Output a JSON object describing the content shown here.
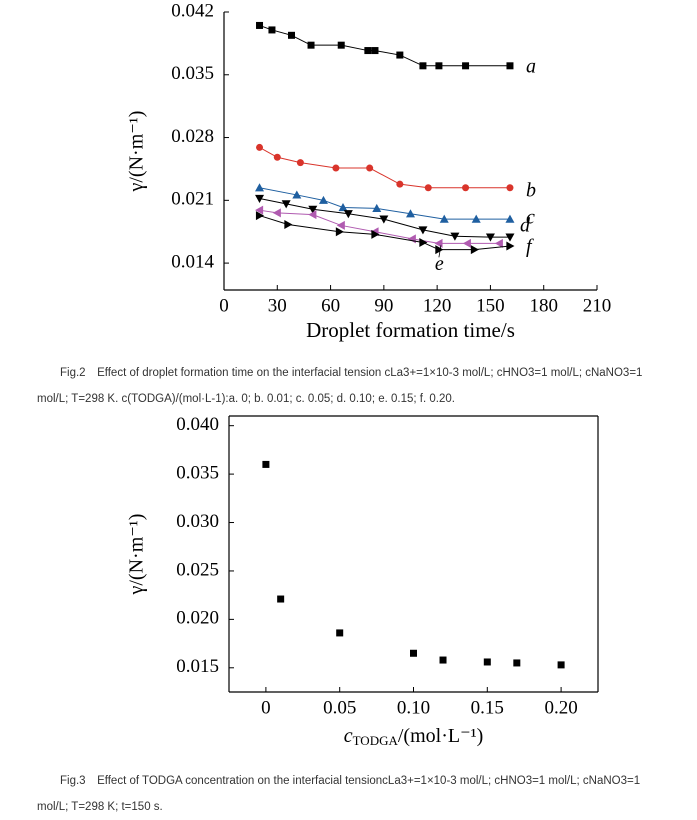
{
  "chart_data": [
    {
      "type": "line",
      "ylabel": "γ/(N·m⁻¹)",
      "xlabel": "Droplet formation time/s",
      "xlim": [
        0,
        210
      ],
      "xticks": [
        0,
        30,
        60,
        90,
        120,
        150,
        180,
        210
      ],
      "ylim": [
        0.011,
        0.042
      ],
      "yticks": [
        0.014,
        0.021,
        0.028,
        0.035,
        0.042
      ],
      "series": [
        {
          "name": "a",
          "color": "#000000",
          "marker": "square",
          "x": [
            20,
            27,
            38,
            49,
            66,
            81,
            85,
            99,
            112,
            121,
            136,
            161
          ],
          "values": [
            0.0405,
            0.04,
            0.0394,
            0.0383,
            0.0383,
            0.0377,
            0.0377,
            0.0372,
            0.036,
            0.036,
            0.036,
            0.036
          ]
        },
        {
          "name": "b",
          "color": "#d9342b",
          "marker": "circle",
          "x": [
            20,
            30,
            43,
            63,
            82,
            99,
            115,
            136,
            161
          ],
          "values": [
            0.0269,
            0.0258,
            0.0252,
            0.0246,
            0.0246,
            0.0228,
            0.0224,
            0.0224,
            0.0224
          ]
        },
        {
          "name": "c",
          "color": "#1f5fa0",
          "marker": "triangle-up",
          "x": [
            20,
            41,
            56,
            67,
            86,
            105,
            124,
            142,
            161
          ],
          "values": [
            0.0224,
            0.0216,
            0.021,
            0.0202,
            0.0201,
            0.0195,
            0.0189,
            0.0189,
            0.0189
          ]
        },
        {
          "name": "d",
          "color": "#000000",
          "marker": "triangle-down",
          "x": [
            20,
            35,
            50,
            70,
            90,
            112,
            130,
            150,
            161
          ],
          "values": [
            0.0212,
            0.0206,
            0.02,
            0.0195,
            0.0189,
            0.0177,
            0.017,
            0.0169,
            0.0169
          ]
        },
        {
          "name": "e",
          "color": "#b05bb0",
          "marker": "triangle-left",
          "x": [
            20,
            30,
            50,
            66,
            85,
            106,
            121,
            137,
            155
          ],
          "values": [
            0.0199,
            0.0196,
            0.0194,
            0.0182,
            0.0175,
            0.0167,
            0.0162,
            0.0162,
            0.0162
          ]
        },
        {
          "name": "f",
          "color": "#000000",
          "marker": "triangle-right",
          "x": [
            20,
            36,
            65,
            85,
            112,
            121,
            141,
            161
          ],
          "values": [
            0.0193,
            0.0183,
            0.0175,
            0.0172,
            0.0163,
            0.0155,
            0.0155,
            0.0159
          ]
        }
      ],
      "caption": "Fig.2　Effect of droplet formation time on the interfacial tension cLa3+=1×10-3 mol/L; cHNO3=1 mol/L; cNaNO3=1 mol/L; T=298 K. c(TODGA)/(mol·L-1):a. 0; b. 0.01; c. 0.05; d. 0.10; e. 0.15; f. 0.20."
    },
    {
      "type": "scatter",
      "ylabel": "γ/(N·m⁻¹)",
      "xlabel": {
        "symbol": "c",
        "subscript": "TODGA",
        "unit": "/(mol·L⁻¹)"
      },
      "xlim": [
        -0.025,
        0.225
      ],
      "xticks": [
        0,
        0.05,
        {
          "value": 0.1,
          "label": "0.10"
        },
        0.15,
        {
          "value": 0.2,
          "label": "0.20"
        }
      ],
      "ylim": [
        0.0125,
        0.041
      ],
      "yticks": [
        {
          "value": 0.015,
          "label": "0.015"
        },
        {
          "value": 0.02,
          "label": "0.020"
        },
        0.025,
        {
          "value": 0.03,
          "label": "0.030"
        },
        0.035,
        {
          "value": 0.04,
          "label": "0.040"
        }
      ],
      "color": "#000000",
      "x": [
        0,
        0.01,
        0.05,
        0.1,
        0.12,
        0.15,
        0.17,
        0.2
      ],
      "values": [
        0.036,
        0.0221,
        0.0186,
        0.0165,
        0.0158,
        0.0156,
        0.0155,
        0.0153
      ],
      "caption": "Fig.3　Effect of TODGA concentration on the interfacial tensioncLa3+=1×10-3 mol/L; cHNO3=1 mol/L; cNaNO3=1 mol/L; T=298 K; t=150 s."
    }
  ]
}
